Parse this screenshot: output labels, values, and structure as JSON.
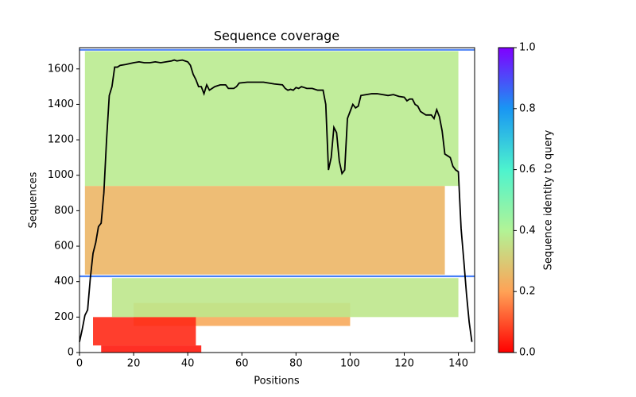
{
  "chart_data": {
    "type": "coverage",
    "title": "Sequence coverage",
    "xlabel": "Positions",
    "ylabel": "Sequences",
    "xlim": [
      0,
      146
    ],
    "xticks": [
      0,
      20,
      40,
      60,
      80,
      100,
      120,
      140
    ],
    "ylim": [
      0,
      1720
    ],
    "yticks": [
      0,
      200,
      400,
      600,
      800,
      1000,
      1200,
      1400,
      1600
    ],
    "heatmap": [
      {
        "y": [
          150,
          280
        ],
        "x": [
          20,
          100
        ],
        "value": 0.22
      },
      {
        "y": [
          0,
          40
        ],
        "x": [
          8,
          45
        ],
        "value": 0.03
      },
      {
        "y": [
          40,
          200
        ],
        "x": [
          5,
          43
        ],
        "value": 0.05
      },
      {
        "y": [
          200,
          420
        ],
        "x": [
          12,
          140
        ],
        "value": 0.37
      },
      {
        "y": [
          425,
          435
        ],
        "x": [
          0,
          146
        ],
        "value": 0.85
      },
      {
        "y": [
          440,
          940
        ],
        "x": [
          2,
          135
        ],
        "value": 0.25
      },
      {
        "y": [
          940,
          1700
        ],
        "x": [
          2,
          140
        ],
        "value": 0.38
      },
      {
        "y": [
          1703,
          1712
        ],
        "x": [
          0,
          146
        ],
        "value": 0.85
      }
    ],
    "coverage": {
      "color": "#000000",
      "x": [
        0,
        1,
        2,
        3,
        4,
        5,
        6,
        7,
        8,
        9,
        10,
        11,
        12,
        13,
        14,
        15,
        17,
        20,
        22,
        24,
        26,
        28,
        30,
        32,
        34,
        35,
        36,
        38,
        40,
        41,
        42,
        43,
        44,
        45,
        46,
        47,
        48,
        50,
        52,
        54,
        55,
        57,
        58,
        59,
        62,
        65,
        68,
        70,
        72,
        75,
        76,
        77,
        78,
        79,
        80,
        81,
        82,
        84,
        86,
        88,
        90,
        91,
        92,
        93,
        94,
        95,
        96,
        97,
        98,
        99,
        100,
        101,
        102,
        103,
        104,
        106,
        108,
        110,
        112,
        114,
        116,
        118,
        120,
        121,
        122,
        123,
        124,
        125,
        126,
        128,
        130,
        131,
        132,
        133,
        134,
        135,
        136,
        137,
        138,
        139,
        140,
        141,
        142,
        143,
        144,
        145
      ],
      "y": [
        60,
        130,
        210,
        240,
        420,
        560,
        620,
        710,
        730,
        900,
        1200,
        1450,
        1500,
        1610,
        1610,
        1620,
        1625,
        1635,
        1640,
        1635,
        1635,
        1640,
        1635,
        1640,
        1645,
        1650,
        1645,
        1650,
        1640,
        1620,
        1570,
        1540,
        1500,
        1500,
        1460,
        1510,
        1480,
        1500,
        1510,
        1510,
        1490,
        1490,
        1500,
        1520,
        1525,
        1525,
        1525,
        1520,
        1515,
        1510,
        1490,
        1480,
        1485,
        1480,
        1495,
        1490,
        1500,
        1490,
        1490,
        1480,
        1480,
        1400,
        1030,
        1100,
        1270,
        1240,
        1080,
        1010,
        1030,
        1320,
        1360,
        1400,
        1380,
        1390,
        1450,
        1455,
        1460,
        1460,
        1455,
        1450,
        1455,
        1445,
        1440,
        1420,
        1430,
        1430,
        1400,
        1390,
        1360,
        1340,
        1340,
        1320,
        1370,
        1330,
        1250,
        1120,
        1110,
        1100,
        1050,
        1030,
        1020,
        700,
        520,
        330,
        170,
        60
      ]
    },
    "colorbar": {
      "label": "Sequence identity to query",
      "lim": [
        0,
        1
      ],
      "ticks": [
        {
          "value": 0,
          "label": "0.0"
        },
        {
          "value": 0.2,
          "label": "0.2"
        },
        {
          "value": 0.4,
          "label": "0.4"
        },
        {
          "value": 0.6,
          "label": "0.6"
        },
        {
          "value": 0.8,
          "label": "0.8"
        },
        {
          "value": 1,
          "label": "1.0"
        }
      ],
      "colormap": [
        "#ff0000",
        "#ffa256",
        "#b2f396",
        "#4df3ce",
        "#1996f3",
        "#8000ff"
      ]
    }
  }
}
